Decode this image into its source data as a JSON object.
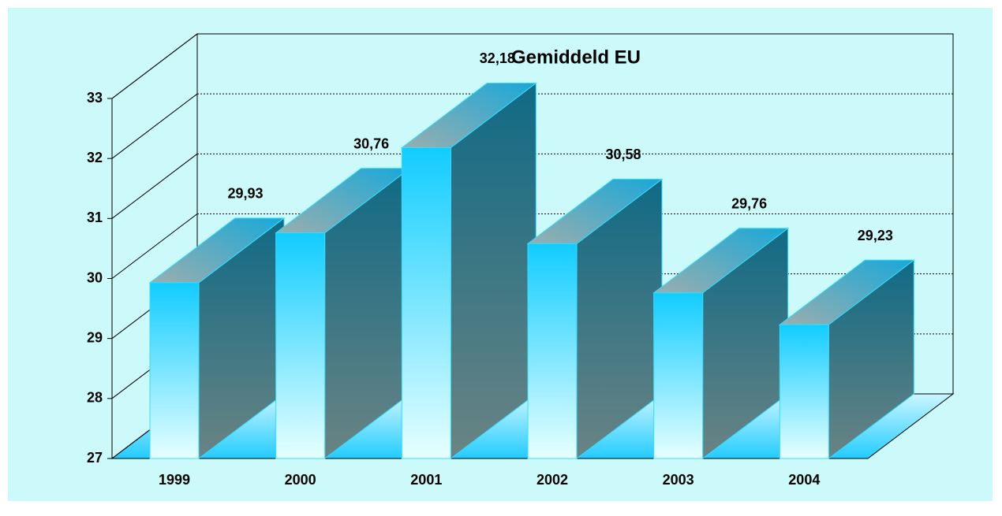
{
  "chart_data": {
    "type": "bar3d",
    "title": "Gemiddeld EU",
    "categories": [
      "1999",
      "2000",
      "2001",
      "2002",
      "2003",
      "2004"
    ],
    "values": [
      29.93,
      30.76,
      32.18,
      30.58,
      29.76,
      29.23
    ],
    "value_labels": [
      "29,93",
      "30,76",
      "32,18",
      "30,58",
      "29,76",
      "29,23"
    ],
    "color": "#11ccff",
    "ylim": [
      27,
      33
    ],
    "yticks": [
      27,
      28,
      29,
      30,
      31,
      32,
      33
    ],
    "grid": true
  }
}
